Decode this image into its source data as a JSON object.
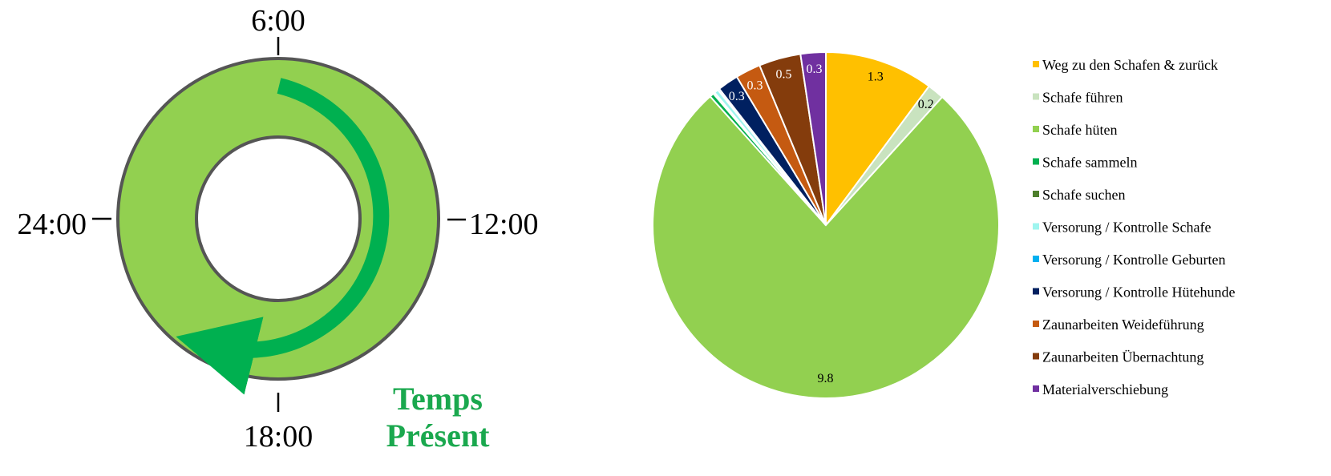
{
  "clock": {
    "labels": {
      "top": "6:00",
      "right": "12:00",
      "bottom": "18:00",
      "left": "24:00"
    },
    "caption_line1": "Temps",
    "caption_line2": "Présent",
    "colors": {
      "ring": "#92d050",
      "arrow": "#00b050",
      "border": "#555555",
      "caption": "#1aa84e"
    }
  },
  "chart_data": {
    "type": "pie",
    "title": "",
    "legend_position": "right",
    "slices": [
      {
        "name": "Weg zu den Schafen & zurück",
        "value": 1.3,
        "label": "1.3",
        "color": "#ffc000"
      },
      {
        "name": "Schafe führen",
        "value": 0.2,
        "label": "0.2",
        "color": "#c9e3bf"
      },
      {
        "name": "Schafe hüten",
        "value": 9.8,
        "label": "9.8",
        "color": "#92d050"
      },
      {
        "name": "Schafe sammeln",
        "value": 0.05,
        "label": "",
        "color": "#00b050"
      },
      {
        "name": "Schafe suchen",
        "value": 0.02,
        "label": "",
        "color": "#4e7f2c"
      },
      {
        "name": "Versorung / Kontrolle Schafe",
        "value": 0.05,
        "label": "",
        "color": "#9ff5ef"
      },
      {
        "name": "Versorung / Kontrolle Geburten",
        "value": 0.02,
        "label": "",
        "color": "#00b0f0"
      },
      {
        "name": "Versorung / Kontrolle Hütehunde",
        "value": 0.25,
        "label": "0.3",
        "color": "#002060"
      },
      {
        "name": "Zaunarbeiten Weideführung",
        "value": 0.3,
        "label": "0.3",
        "color": "#c55a11"
      },
      {
        "name": "Zaunarbeiten Übernachtung",
        "value": 0.5,
        "label": "0.5",
        "color": "#843c0c"
      },
      {
        "name": "Materialverschiebung",
        "value": 0.3,
        "label": "0.3",
        "color": "#7030a0"
      }
    ]
  }
}
